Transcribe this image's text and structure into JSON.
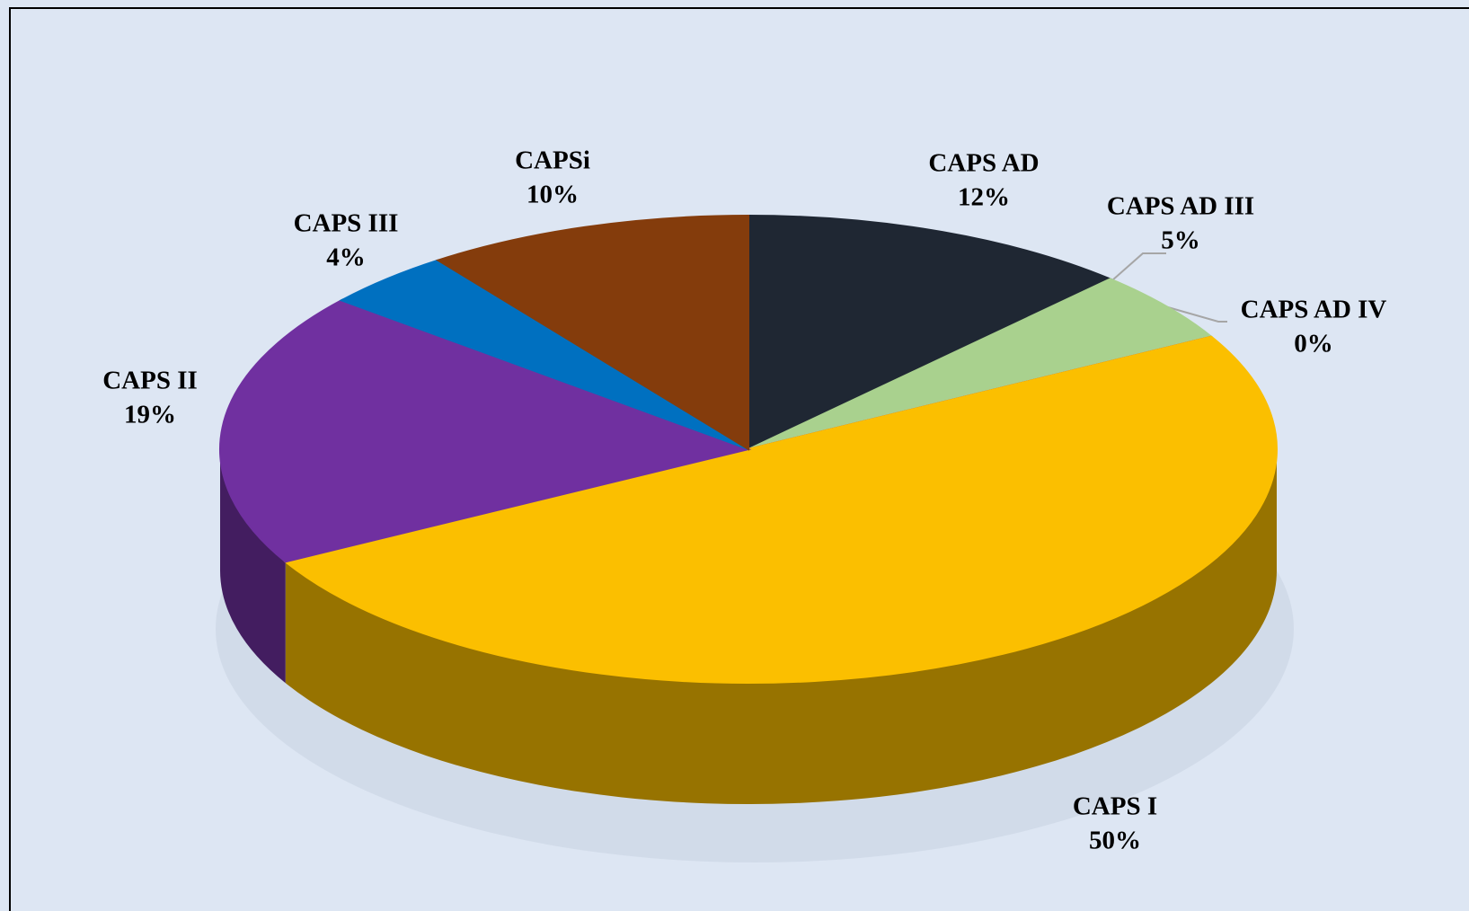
{
  "chart_data": {
    "type": "pie",
    "categories": [
      "CAPS AD",
      "CAPS AD III",
      "CAPS AD IV",
      "CAPS I",
      "CAPS II",
      "CAPS III",
      "CAPSi"
    ],
    "values": [
      12,
      5,
      0,
      50,
      19,
      4,
      10
    ],
    "value_labels": [
      "12%",
      "5%",
      "0%",
      "50%",
      "19%",
      "4%",
      "10%"
    ],
    "colors": [
      "#1f2733",
      "#a9d18e",
      "#ff0000",
      "#fbbf00",
      "#7030a0",
      "#0070c0",
      "#843c0c"
    ]
  }
}
